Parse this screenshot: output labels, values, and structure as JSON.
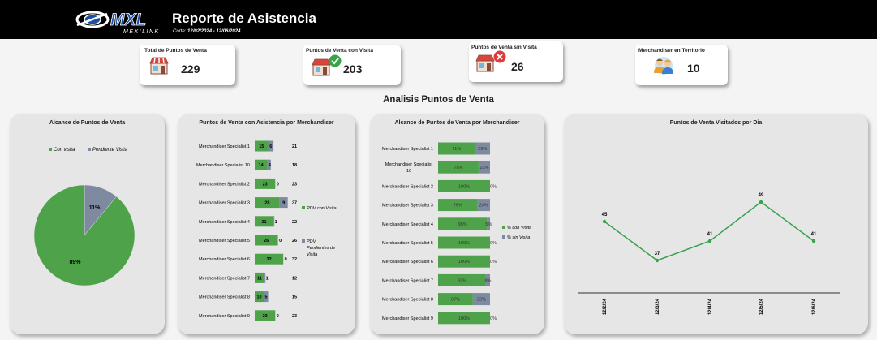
{
  "header": {
    "logo_text": "MXL",
    "logo_subtext": "MEXILINK",
    "title": "Reporte de Asistencia",
    "corte_label": "Corte:",
    "corte_range": "12/02/2024 - 12/06/2024",
    "colors": {
      "background": "#000000",
      "logo_blue": "#1b4fa8"
    }
  },
  "kpis": [
    {
      "label": "Total de Puntos de Venta",
      "value": "229",
      "icon": "store-icon"
    },
    {
      "label": "Puntos de Venta con Visita",
      "value": "203",
      "icon": "store-check-icon"
    },
    {
      "label": "Puntos de Venta sin Visita",
      "value": "26",
      "icon": "store-x-icon"
    },
    {
      "label": "Merchandiser en Territorio",
      "value": "10",
      "icon": "people-icon"
    }
  ],
  "section_title": "Analisis Puntos de Venta",
  "colors": {
    "green": "#4ea34a",
    "gray": "#7e8aa0",
    "line": "#3aa34a",
    "panel": "#e6e6e6"
  },
  "chart_data": [
    {
      "type": "pie",
      "title": "Alcance de Puntos de Venta",
      "legend_position": "top",
      "series": [
        {
          "name": "Con visita",
          "value": 89,
          "label": "89%"
        },
        {
          "name": "Pendiente Visita",
          "value": 11,
          "label": "11%"
        }
      ]
    },
    {
      "type": "bar",
      "orientation": "horizontal",
      "stacked": true,
      "title": "Puntos de Venta con Asistencia por Merchandiser",
      "legend_position": "right",
      "categories": [
        "Merchandiser Specialist 1",
        "Merchandiser Specialist 10",
        "Merchandiser Specialist 2",
        "Merchandiser Specialist 3",
        "Merchandiser Specialist 4",
        "Merchandiser Specialist 5",
        "Merchandiser Specialist 6",
        "Merchandiser Specialist 7",
        "Merchandiser Specialist 8",
        "Merchandiser Specialist 9"
      ],
      "series": [
        {
          "name": "PDV con Visita",
          "values": [
            15,
            14,
            23,
            28,
            21,
            26,
            32,
            11,
            10,
            23
          ]
        },
        {
          "name": "PDV Pendientes de Visita",
          "values": [
            6,
            4,
            0,
            9,
            1,
            0,
            0,
            1,
            5,
            0
          ]
        }
      ],
      "totals": [
        21,
        18,
        23,
        37,
        22,
        26,
        32,
        12,
        15,
        23
      ]
    },
    {
      "type": "bar",
      "orientation": "horizontal",
      "stacked": true,
      "percent": true,
      "title": "Alcance de Puntos de Venta por Merchandiser",
      "legend_position": "right",
      "categories": [
        "Merchandiser Specialist 1",
        "Merchandiser Specialist 10",
        "Merchandiser Specialist 2",
        "Merchandiser Specialist 3",
        "Merchandiser Specialist 4",
        "Merchandiser Specialist 5",
        "Merchandiser Specialist 6",
        "Merchandiser Specialist 7",
        "Merchandiser Specialist 8",
        "Merchandiser Specialist 9"
      ],
      "series": [
        {
          "name": "% con Visita",
          "values": [
            71,
            78,
            100,
            76,
            95,
            100,
            100,
            92,
            67,
            100
          ]
        },
        {
          "name": "% sin Visita",
          "values": [
            29,
            22,
            0,
            24,
            5,
            0,
            0,
            8,
            33,
            0
          ]
        }
      ]
    },
    {
      "type": "line",
      "title": "Puntos de Venta Visitados por Dia",
      "x": [
        "12/2/24",
        "12/3/24",
        "12/4/24",
        "12/5/24",
        "12/6/24"
      ],
      "y": [
        45,
        37,
        41,
        49,
        41
      ],
      "x_tick_labels": [
        "12/2/24",
        "12/3/24",
        "12/4/24",
        "12/5/24",
        "12/6/24"
      ],
      "grid": false
    }
  ]
}
